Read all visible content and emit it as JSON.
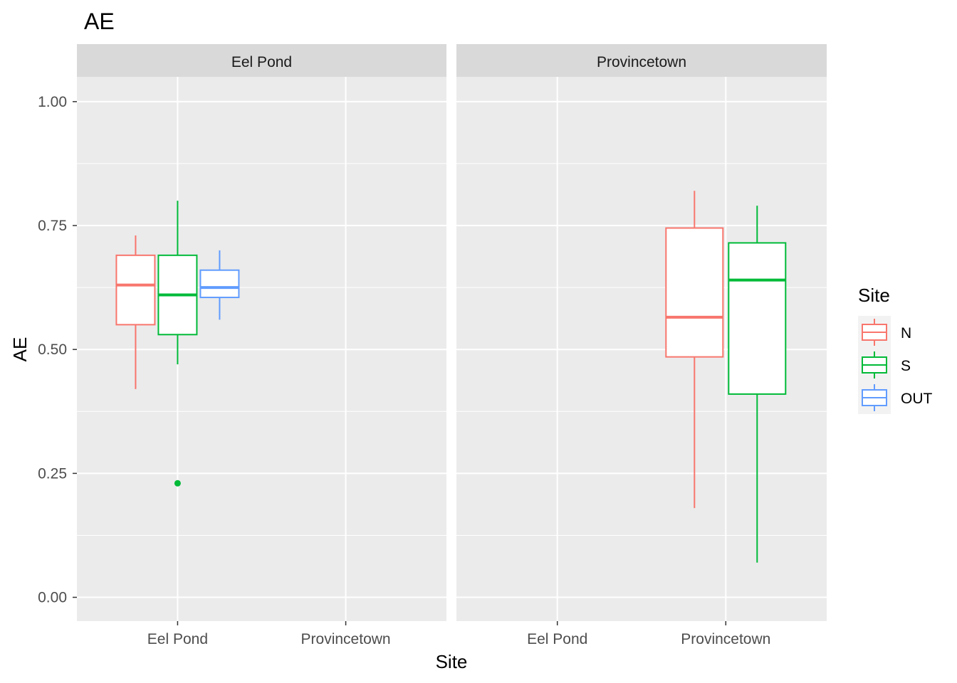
{
  "chart_data": {
    "type": "boxplot",
    "title": "AE",
    "xlabel": "Site",
    "ylabel": "AE",
    "ylim": [
      -0.048,
      1.05
    ],
    "yticks": [
      "0.00",
      "0.25",
      "0.50",
      "0.75",
      "1.00"
    ],
    "ytick_values": [
      0,
      0.25,
      0.5,
      0.75,
      1.0
    ],
    "categories": [
      "Eel Pond",
      "Provincetown"
    ],
    "grid": true,
    "legend": {
      "title": "Site",
      "position": "right",
      "items": [
        {
          "label": "N",
          "color": "#F8766D"
        },
        {
          "label": "S",
          "color": "#00BA38"
        },
        {
          "label": "OUT",
          "color": "#619CFF"
        }
      ]
    },
    "panels": [
      {
        "label": "Eel Pond",
        "boxes": [
          {
            "group": "N",
            "category": "Eel Pond",
            "min": 0.42,
            "q1": 0.55,
            "median": 0.63,
            "q3": 0.69,
            "max": 0.73,
            "outliers": []
          },
          {
            "group": "S",
            "category": "Eel Pond",
            "min": 0.47,
            "q1": 0.53,
            "median": 0.61,
            "q3": 0.69,
            "max": 0.8,
            "outliers": [
              0.23
            ]
          },
          {
            "group": "OUT",
            "category": "Eel Pond",
            "min": 0.56,
            "q1": 0.605,
            "median": 0.625,
            "q3": 0.66,
            "max": 0.7,
            "outliers": []
          }
        ]
      },
      {
        "label": "Provincetown",
        "boxes": [
          {
            "group": "N",
            "category": "Provincetown",
            "min": 0.18,
            "q1": 0.485,
            "median": 0.565,
            "q3": 0.745,
            "max": 0.82,
            "outliers": []
          },
          {
            "group": "S",
            "category": "Provincetown",
            "min": 0.07,
            "q1": 0.41,
            "median": 0.64,
            "q3": 0.715,
            "max": 0.79,
            "outliers": []
          }
        ]
      }
    ]
  }
}
